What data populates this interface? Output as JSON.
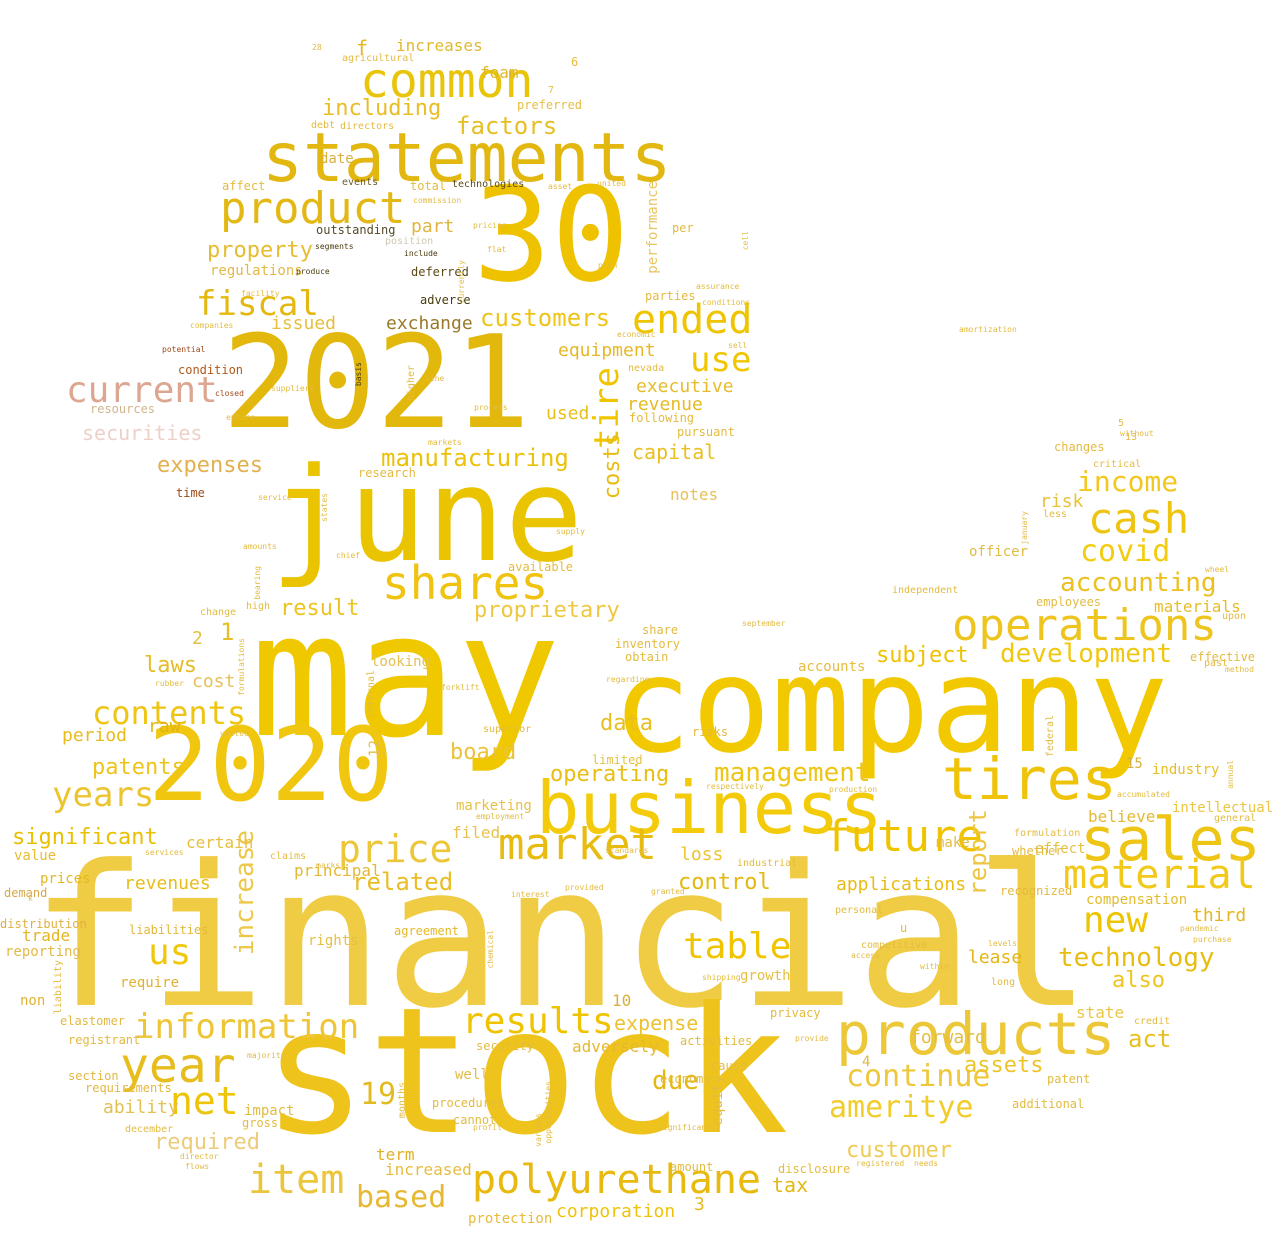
{
  "words": [
    {
      "text": "financial",
      "color": "#f0cc44"
    },
    {
      "text": "stock",
      "color": "#eec41c"
    },
    {
      "text": "may",
      "color": "#f0c800"
    },
    {
      "text": "company",
      "color": "#f2c900"
    },
    {
      "text": "june",
      "color": "#eac400"
    },
    {
      "text": "2021",
      "color": "#e3b80d"
    },
    {
      "text": "2020",
      "color": "#f0c60f"
    },
    {
      "text": "30",
      "color": "#efc200"
    },
    {
      "text": "business",
      "color": "#f3cb0a"
    },
    {
      "text": "statements",
      "color": "#e2b710"
    },
    {
      "text": "common",
      "color": "#e8c40b"
    },
    {
      "text": "products",
      "color": "#ecc737"
    },
    {
      "text": "operations",
      "color": "#eec41e"
    },
    {
      "text": "sales",
      "color": "#eec515"
    },
    {
      "text": "tires",
      "color": "#efc309"
    },
    {
      "text": "market",
      "color": "#e7bb0f"
    },
    {
      "text": "product",
      "color": "#e3b815"
    },
    {
      "text": "shares",
      "color": "#efc30f"
    },
    {
      "text": "year",
      "color": "#e7bd1e"
    },
    {
      "text": "polyurethane",
      "color": "#e8b90e"
    },
    {
      "text": "future",
      "color": "#efc300"
    },
    {
      "text": "cash",
      "color": "#eec410"
    },
    {
      "text": "current",
      "color": "#dca690"
    },
    {
      "text": "information",
      "color": "#eec536"
    },
    {
      "text": "results",
      "color": "#efc300"
    },
    {
      "text": "price",
      "color": "#edc73a"
    },
    {
      "text": "material",
      "color": "#f2c81a"
    },
    {
      "text": "ended",
      "color": "#efc400"
    },
    {
      "text": "item",
      "color": "#ebc53a"
    },
    {
      "text": "table",
      "color": "#f0c500"
    },
    {
      "text": "new",
      "color": "#eec400"
    },
    {
      "text": "net",
      "color": "#eec40a"
    },
    {
      "text": "years",
      "color": "#ecc430"
    },
    {
      "text": "fiscal",
      "color": "#e4b810"
    },
    {
      "text": "contents",
      "color": "#eec515"
    },
    {
      "text": "use",
      "color": "#f0c600"
    },
    {
      "text": "covid",
      "color": "#f3cc10"
    },
    {
      "text": "us",
      "color": "#f0c70a"
    },
    {
      "text": "based",
      "color": "#e6b833"
    },
    {
      "text": "continue",
      "color": "#eec83a"
    },
    {
      "text": "ameritye",
      "color": "#f1cc2a"
    },
    {
      "text": "manufacturing",
      "color": "#ebc10a"
    },
    {
      "text": "customers",
      "color": "#eec41a"
    },
    {
      "text": "management",
      "color": "#eec515"
    },
    {
      "text": "accounting",
      "color": "#ecc020"
    },
    {
      "text": "income",
      "color": "#f2c720"
    },
    {
      "text": "development",
      "color": "#f2c710"
    },
    {
      "text": "technology",
      "color": "#e8bd10"
    },
    {
      "text": "related",
      "color": "#e8bd25"
    },
    {
      "text": "factors",
      "color": "#e7be24"
    },
    {
      "text": "including",
      "color": "#e8bd25"
    },
    {
      "text": "property",
      "color": "#e6bc30"
    },
    {
      "text": "expenses",
      "color": "#e2b050"
    },
    {
      "text": "securities",
      "color": "#eed0c8"
    },
    {
      "text": "required",
      "color": "#eccc7a"
    },
    {
      "text": "subject",
      "color": "#eec200"
    },
    {
      "text": "operating",
      "color": "#e8be10"
    },
    {
      "text": "proprietary",
      "color": "#eec840"
    },
    {
      "text": "result",
      "color": "#ecc320"
    },
    {
      "text": "laws",
      "color": "#e5bc25"
    },
    {
      "text": "patents",
      "color": "#eec41a"
    },
    {
      "text": "control",
      "color": "#e3b810"
    },
    {
      "text": "customer",
      "color": "#efcb55"
    },
    {
      "text": "assets",
      "color": "#edc528"
    },
    {
      "text": "due",
      "color": "#e5b810"
    },
    {
      "text": "act",
      "color": "#e9bf20"
    },
    {
      "text": "also",
      "color": "#efc420"
    },
    {
      "text": "report",
      "color": "#edc540"
    },
    {
      "text": "increase",
      "color": "#edc74a"
    },
    {
      "text": "tire",
      "color": "#f0c500"
    },
    {
      "text": "costs",
      "color": "#e7bc15"
    },
    {
      "text": "data",
      "color": "#e8bf20"
    },
    {
      "text": "capital",
      "color": "#eabf1f"
    },
    {
      "text": "revenue",
      "color": "#e6bb24"
    },
    {
      "text": "applications",
      "color": "#e7bc15"
    },
    {
      "text": "equipment",
      "color": "#e6b828"
    },
    {
      "text": "executive",
      "color": "#e6bc2c"
    },
    {
      "text": "expense",
      "color": "#ecc230"
    },
    {
      "text": "exchange",
      "color": "#9a7a2a"
    },
    {
      "text": "board",
      "color": "#ebc33a"
    },
    {
      "text": "tax",
      "color": "#e3b810"
    },
    {
      "text": "corporation",
      "color": "#efc30c"
    },
    {
      "text": "significant",
      "color": "#e8c000"
    },
    {
      "text": "ability",
      "color": "#e3c050"
    },
    {
      "text": "revenues",
      "color": "#e6bd18"
    },
    {
      "text": "period",
      "color": "#e8bb1e"
    },
    {
      "text": "cost",
      "color": "#e7c05a"
    },
    {
      "text": "raw",
      "color": "#e2b510"
    },
    {
      "text": "lease",
      "color": "#e3b615"
    },
    {
      "text": "third",
      "color": "#e4b520"
    },
    {
      "text": "forward",
      "color": "#e6bc40"
    },
    {
      "text": "issued",
      "color": "#e6bf40"
    },
    {
      "text": "notes",
      "color": "#e8c05a"
    },
    {
      "text": "used",
      "color": "#e7c01a"
    },
    {
      "text": "part",
      "color": "#e0b640"
    },
    {
      "text": "risk",
      "color": "#e9c238"
    },
    {
      "text": "materials",
      "color": "#e6bc2a"
    },
    {
      "text": "state",
      "color": "#eac645"
    },
    {
      "text": "filed",
      "color": "#e9c250"
    },
    {
      "text": "term",
      "color": "#e0b025"
    },
    {
      "text": "increased",
      "color": "#e6bd40"
    },
    {
      "text": "protection",
      "color": "#e6bc3a"
    },
    {
      "text": "adversely",
      "color": "#e4b830"
    },
    {
      "text": "principal",
      "color": "#e3b835"
    },
    {
      "text": "certain",
      "color": "#e7be40"
    },
    {
      "text": "loss",
      "color": "#ecc430"
    },
    {
      "text": "intellectual",
      "color": "#ecc640"
    },
    {
      "text": "believe",
      "color": "#e4b830"
    },
    {
      "text": "industry",
      "color": "#e7bd25"
    },
    {
      "text": "regulations",
      "color": "#e3b845"
    },
    {
      "text": "increases",
      "color": "#e2b830"
    },
    {
      "text": "foam",
      "color": "#e1b52a"
    },
    {
      "text": "date",
      "color": "#d9b040"
    },
    {
      "text": "preferred",
      "color": "#e6be40"
    },
    {
      "text": "f",
      "color": "#e4b820"
    },
    {
      "text": "performance",
      "color": "#e9c560"
    },
    {
      "text": "outstanding",
      "color": "#544a2a"
    },
    {
      "text": "deferred",
      "color": "#5a4a14"
    },
    {
      "text": "adverse",
      "color": "#4a3c0e"
    },
    {
      "text": "time",
      "color": "#a04818"
    },
    {
      "text": "condition",
      "color": "#b05818"
    },
    {
      "text": "resources",
      "color": "#d2b48c"
    },
    {
      "text": "marketing",
      "color": "#e7c04a"
    },
    {
      "text": "19",
      "color": "#e3bb20"
    },
    {
      "text": "15",
      "color": "#d8b040"
    },
    {
      "text": "10",
      "color": "#d8b040"
    },
    {
      "text": "3",
      "color": "#e6bc20"
    },
    {
      "text": "2",
      "color": "#e5c040"
    },
    {
      "text": "1",
      "color": "#e5be2a"
    },
    {
      "text": "12",
      "color": "#e5be4a"
    },
    {
      "text": "4",
      "color": "#e0b840"
    },
    {
      "text": "value",
      "color": "#e6bd30"
    },
    {
      "text": "trade",
      "color": "#e3b520"
    },
    {
      "text": "prices",
      "color": "#e3b820"
    },
    {
      "text": "demand",
      "color": "#d8a848"
    },
    {
      "text": "liabilities",
      "color": "#e3b838"
    },
    {
      "text": "require",
      "color": "#e0b030"
    },
    {
      "text": "non",
      "color": "#e0b230"
    },
    {
      "text": "section",
      "color": "#e3b840"
    },
    {
      "text": "requirements",
      "color": "#e3b840"
    },
    {
      "text": "elastomer",
      "color": "#e2b840"
    },
    {
      "text": "registrant",
      "color": "#e3b840"
    },
    {
      "text": "reporting",
      "color": "#e2ba48"
    },
    {
      "text": "distribution",
      "color": "#dfb040"
    },
    {
      "text": "rights",
      "color": "#e6c040"
    },
    {
      "text": "agreement",
      "color": "#e4b928"
    },
    {
      "text": "growth",
      "color": "#e6be40"
    },
    {
      "text": "make",
      "color": "#e6bd40"
    },
    {
      "text": "effect",
      "color": "#e6c040"
    },
    {
      "text": "compensation",
      "color": "#e3bb30"
    },
    {
      "text": "recognized",
      "color": "#e3b840"
    },
    {
      "text": "accounts",
      "color": "#e6bc40"
    },
    {
      "text": "limited",
      "color": "#e6c040"
    },
    {
      "text": "risks",
      "color": "#e3b840"
    },
    {
      "text": "looking",
      "color": "#e6c050"
    },
    {
      "text": "changes",
      "color": "#e3bb40"
    },
    {
      "text": "officer",
      "color": "#e3bb40"
    },
    {
      "text": "employees",
      "color": "#e3bb40"
    },
    {
      "text": "patent",
      "color": "#e3bb40"
    },
    {
      "text": "additional",
      "color": "#e3bb40"
    },
    {
      "text": "disclosure",
      "color": "#e3bb40"
    },
    {
      "text": "activities",
      "color": "#e3bb40"
    },
    {
      "text": "security",
      "color": "#e3bb40"
    },
    {
      "text": "cannot",
      "color": "#e3bb40"
    },
    {
      "text": "procedures",
      "color": "#e3bb40"
    },
    {
      "text": "well",
      "color": "#e3bb40"
    },
    {
      "text": "privacy",
      "color": "#e3bb40"
    },
    {
      "text": "impact",
      "color": "#e3bb40"
    },
    {
      "text": "gross",
      "color": "#e3bb40"
    },
    {
      "text": "economy",
      "color": "#e3bb40"
    },
    {
      "text": "cause",
      "color": "#e3bb40"
    },
    {
      "text": "amount",
      "color": "#e3bb40"
    },
    {
      "text": "affect",
      "color": "#e3bb40"
    },
    {
      "text": "events",
      "color": "#6b5a2a"
    },
    {
      "text": "total",
      "color": "#e3bb40"
    },
    {
      "text": "technologies",
      "color": "#5a4a1a"
    },
    {
      "text": "parties",
      "color": "#e3bb40"
    },
    {
      "text": "per",
      "color": "#e3bb40"
    },
    {
      "text": "following",
      "color": "#e3bb40"
    },
    {
      "text": "pursuant",
      "color": "#e3bb40"
    },
    {
      "text": "shipping",
      "color": "#e3bb40"
    },
    {
      "text": "long",
      "color": "#e3bb40"
    },
    {
      "text": "u",
      "color": "#e3bb40"
    },
    {
      "text": "available",
      "color": "#e3bb40"
    },
    {
      "text": "research",
      "color": "#e3bb40"
    },
    {
      "text": "whether",
      "color": "#e3bb40"
    },
    {
      "text": "formulation",
      "color": "#e3bb40"
    },
    {
      "text": "general",
      "color": "#e3bb40"
    },
    {
      "text": "effective",
      "color": "#e3bb40"
    },
    {
      "text": "past",
      "color": "#e3bb40"
    },
    {
      "text": "upon",
      "color": "#e3bb40"
    },
    {
      "text": "superior",
      "color": "#e3bb40"
    },
    {
      "text": "obtain",
      "color": "#e3bb40"
    },
    {
      "text": "share",
      "color": "#e3bb40"
    },
    {
      "text": "inventory",
      "color": "#e3bb40"
    },
    {
      "text": "credit",
      "color": "#e3bb40"
    },
    {
      "text": "less",
      "color": "#e3bb40"
    },
    {
      "text": "critical",
      "color": "#e3bb40"
    },
    {
      "text": "without",
      "color": "#e3bb40"
    },
    {
      "text": "13",
      "color": "#e3bb40"
    },
    {
      "text": "5",
      "color": "#e3bb40"
    },
    {
      "text": "6",
      "color": "#e3bb40"
    },
    {
      "text": "7",
      "color": "#e3bb40"
    },
    {
      "text": "28",
      "color": "#e3bb40"
    },
    {
      "text": "directors",
      "color": "#e3bb40"
    },
    {
      "text": "debt",
      "color": "#e3bb40"
    },
    {
      "text": "agricultural",
      "color": "#e3bb40"
    },
    {
      "text": "potential",
      "color": "#a04818"
    },
    {
      "text": "closed",
      "color": "#a04818"
    },
    {
      "text": "companies",
      "color": "#e3bb40"
    },
    {
      "text": "produce",
      "color": "#4a3c0e"
    },
    {
      "text": "segments",
      "color": "#4a3c0e"
    },
    {
      "text": "include",
      "color": "#4a3c0e"
    },
    {
      "text": "position",
      "color": "#d0c8b0"
    },
    {
      "text": "basis",
      "color": "#4a3c0e"
    },
    {
      "text": "higher",
      "color": "#e3bb40"
    },
    {
      "text": "line",
      "color": "#e3bb40"
    },
    {
      "text": "nevada",
      "color": "#e3bb40"
    },
    {
      "text": "facility",
      "color": "#e3bb40"
    },
    {
      "text": "suppliers",
      "color": "#e3bb40"
    },
    {
      "text": "entire",
      "color": "#e3bb40"
    },
    {
      "text": "service",
      "color": "#e3bb40"
    },
    {
      "text": "supply",
      "color": "#e3bb40"
    },
    {
      "text": "amounts",
      "color": "#e3bb40"
    },
    {
      "text": "vested",
      "color": "#e3bb40"
    },
    {
      "text": "high",
      "color": "#e3bb40"
    },
    {
      "text": "change",
      "color": "#e3bb40"
    },
    {
      "text": "internal",
      "color": "#e3bb40"
    },
    {
      "text": "rubber",
      "color": "#e3bb40"
    },
    {
      "text": "december",
      "color": "#e3bb40"
    },
    {
      "text": "regarding",
      "color": "#e3bb40"
    },
    {
      "text": "industrial",
      "color": "#e3bb40"
    },
    {
      "text": "personal",
      "color": "#e3bb40"
    },
    {
      "text": "competitive",
      "color": "#e3bb40"
    },
    {
      "text": "access",
      "color": "#e3bb40"
    },
    {
      "text": "levels",
      "color": "#e3bb40"
    },
    {
      "text": "within",
      "color": "#e3bb40"
    },
    {
      "text": "pandemic",
      "color": "#e3bb40"
    },
    {
      "text": "purchase",
      "color": "#e3bb40"
    },
    {
      "text": "independent",
      "color": "#e3bb40"
    },
    {
      "text": "method",
      "color": "#e3bb40"
    },
    {
      "text": "liability",
      "color": "#e3bb40"
    },
    {
      "text": "k",
      "color": "#e3bb40"
    },
    {
      "text": "months",
      "color": "#e3bb40"
    },
    {
      "text": "director",
      "color": "#e3bb40"
    },
    {
      "text": "flows",
      "color": "#e3bb40"
    },
    {
      "text": "provide",
      "color": "#e3bb40"
    },
    {
      "text": "registered",
      "color": "#e3bb40"
    },
    {
      "text": "needs",
      "color": "#e3bb40"
    },
    {
      "text": "profit",
      "color": "#e3bb40"
    },
    {
      "text": "federal",
      "color": "#e3bb40"
    },
    {
      "text": "january",
      "color": "#e3bb40"
    },
    {
      "text": "equity",
      "color": "#e3bb40"
    },
    {
      "text": "claims",
      "color": "#e3bb40"
    },
    {
      "text": "granted",
      "color": "#e3bb40"
    },
    {
      "text": "provided",
      "color": "#e3bb40"
    },
    {
      "text": "interest",
      "color": "#e3bb40"
    },
    {
      "text": "standards",
      "color": "#e3bb40"
    },
    {
      "text": "production",
      "color": "#e3bb40"
    },
    {
      "text": "respectively",
      "color": "#e3bb40"
    },
    {
      "text": "forklift",
      "color": "#e3bb40"
    },
    {
      "text": "formulations",
      "color": "#e3bb40"
    },
    {
      "text": "marks",
      "color": "#e3bb40"
    },
    {
      "text": "services",
      "color": "#e3bb40"
    },
    {
      "text": "chemical",
      "color": "#e3bb40"
    },
    {
      "text": "september",
      "color": "#e3bb40"
    },
    {
      "text": "wheel",
      "color": "#e3bb40"
    },
    {
      "text": "annual",
      "color": "#e3bb40"
    },
    {
      "text": "employment",
      "color": "#e3bb40"
    },
    {
      "text": "accumulated",
      "color": "#e3bb40"
    },
    {
      "text": "amortization",
      "color": "#e3bb40"
    },
    {
      "text": "majority",
      "color": "#e3bb40"
    },
    {
      "text": "various",
      "color": "#e3bb40"
    },
    {
      "text": "opportunities",
      "color": "#e3bb40"
    },
    {
      "text": "significantly",
      "color": "#e3bb40"
    },
    {
      "text": "commission",
      "color": "#e3bb40"
    },
    {
      "text": "united",
      "color": "#e3bb40"
    },
    {
      "text": "conditions",
      "color": "#e3bb40"
    },
    {
      "text": "sell",
      "color": "#e3bb40"
    },
    {
      "text": "assurance",
      "color": "#e3bb40"
    },
    {
      "text": "economic",
      "color": "#e3bb40"
    },
    {
      "text": "process",
      "color": "#e3bb40"
    },
    {
      "text": "markets",
      "color": "#e3bb40"
    },
    {
      "text": "pricing",
      "color": "#e3bb40"
    },
    {
      "text": "currently",
      "color": "#e3bb40"
    },
    {
      "text": "flat",
      "color": "#e3bb40"
    },
    {
      "text": "cell",
      "color": "#e3bb40"
    },
    {
      "text": "plan",
      "color": "#e3bb40"
    },
    {
      "text": "asset",
      "color": "#e3bb40"
    },
    {
      "text": "states",
      "color": "#e3bb40"
    },
    {
      "text": "chief",
      "color": "#e3bb40"
    },
    {
      "text": "bearing",
      "color": "#e3bb40"
    }
  ]
}
